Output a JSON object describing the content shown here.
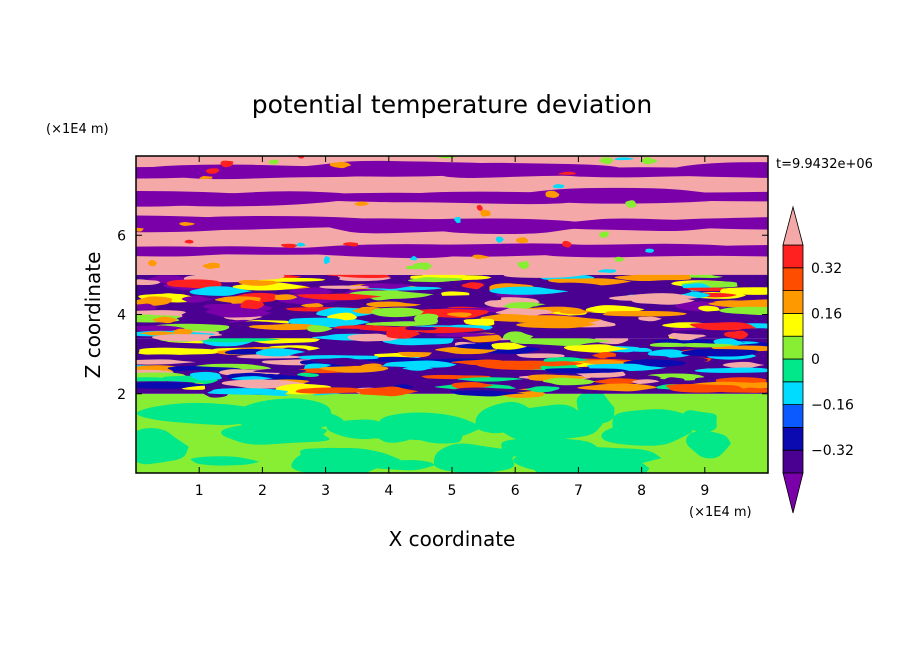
{
  "chart_data": {
    "type": "heatmap",
    "title": "potential temperature deviation",
    "xlabel": "X coordinate",
    "ylabel": "Z coordinate",
    "x_unit": "(×1E4 m)",
    "y_unit": "(×1E4 m)",
    "time_label": "t=9.9432e+06",
    "xlim": [
      0,
      10
    ],
    "ylim": [
      0,
      8
    ],
    "x_ticks": [
      "1",
      "2",
      "3",
      "4",
      "5",
      "6",
      "7",
      "8",
      "9"
    ],
    "y_ticks": [
      "2",
      "4",
      "6"
    ],
    "colorbar": {
      "levels": [
        -0.48,
        -0.4,
        -0.32,
        -0.24,
        -0.16,
        -0.08,
        0,
        0.08,
        0.16,
        0.24,
        0.32,
        0.4
      ],
      "labels": [
        "0.32",
        "0.16",
        "0",
        "−0.16",
        "−0.32"
      ],
      "label_values": [
        0.32,
        0.16,
        0,
        -0.16,
        -0.32
      ],
      "colors": [
        "#7a00aa",
        "#4a0090",
        "#0a0ab0",
        "#0a5aff",
        "#00dcff",
        "#00e88a",
        "#88ee33",
        "#ffff00",
        "#ff9900",
        "#ff4d00",
        "#ff2020",
        "#f5a8a8"
      ],
      "extend": "both"
    },
    "layers": [
      {
        "z_from": 0.0,
        "z_to": 2.0,
        "pattern": "smooth",
        "colors": [
          "#88ee33",
          "#00e88a"
        ]
      },
      {
        "z_from": 2.0,
        "z_to": 3.4,
        "pattern": "turbulent",
        "colors": [
          "#4a0090",
          "#0a0ab0",
          "#00dcff",
          "#00e88a",
          "#88ee33",
          "#ffff00",
          "#ff9900",
          "#ff4d00",
          "#f5a8a8"
        ]
      },
      {
        "z_from": 3.4,
        "z_to": 5.0,
        "pattern": "turbulent",
        "colors": [
          "#4a0090",
          "#7a00aa",
          "#00dcff",
          "#88ee33",
          "#ffff00",
          "#ff9900",
          "#ff2020",
          "#f5a8a8"
        ]
      },
      {
        "z_from": 5.0,
        "z_to": 8.0,
        "pattern": "banded",
        "colors": [
          "#f5a8a8",
          "#7a00aa"
        ]
      }
    ]
  }
}
